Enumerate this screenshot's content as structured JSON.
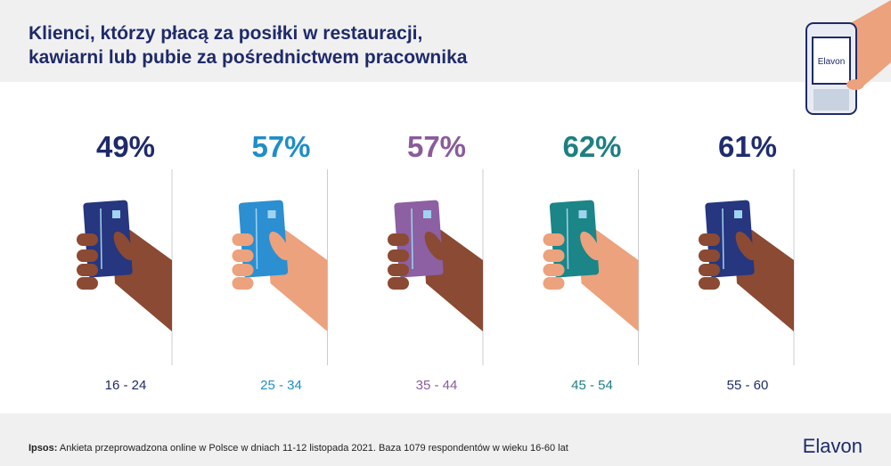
{
  "header": {
    "title_lines": [
      "Klienci, którzy płacą za posiłki w restauracji,",
      "kawiarni lub pubie za pośrednictwem pracownika"
    ],
    "phone_logo": "Elavon"
  },
  "groups": [
    {
      "percent": "49%",
      "age": "16 - 24",
      "color": "#1f2a6b",
      "card": "#26367f",
      "skin": "#8b4a33"
    },
    {
      "percent": "57%",
      "age": "25 - 34",
      "color": "#1f8dc8",
      "card": "#2b8fd1",
      "skin": "#eca27c"
    },
    {
      "percent": "57%",
      "age": "35 - 44",
      "color": "#8a5b9b",
      "card": "#8c60a2",
      "skin": "#8b4a33"
    },
    {
      "percent": "62%",
      "age": "45 - 54",
      "color": "#1d7f80",
      "card": "#1b8587",
      "skin": "#eca27c"
    },
    {
      "percent": "61%",
      "age": "55 - 60",
      "color": "#1f2c6e",
      "card": "#26367f",
      "skin": "#8b4a33"
    }
  ],
  "footer": {
    "source_label": "Ipsos:",
    "source_text": "Ankieta przeprowadzona online w Polsce w dniach 11-12 listopada 2021. Baza 1079 respondentów w wieku 16-60 lat",
    "logo": "Elavon"
  }
}
